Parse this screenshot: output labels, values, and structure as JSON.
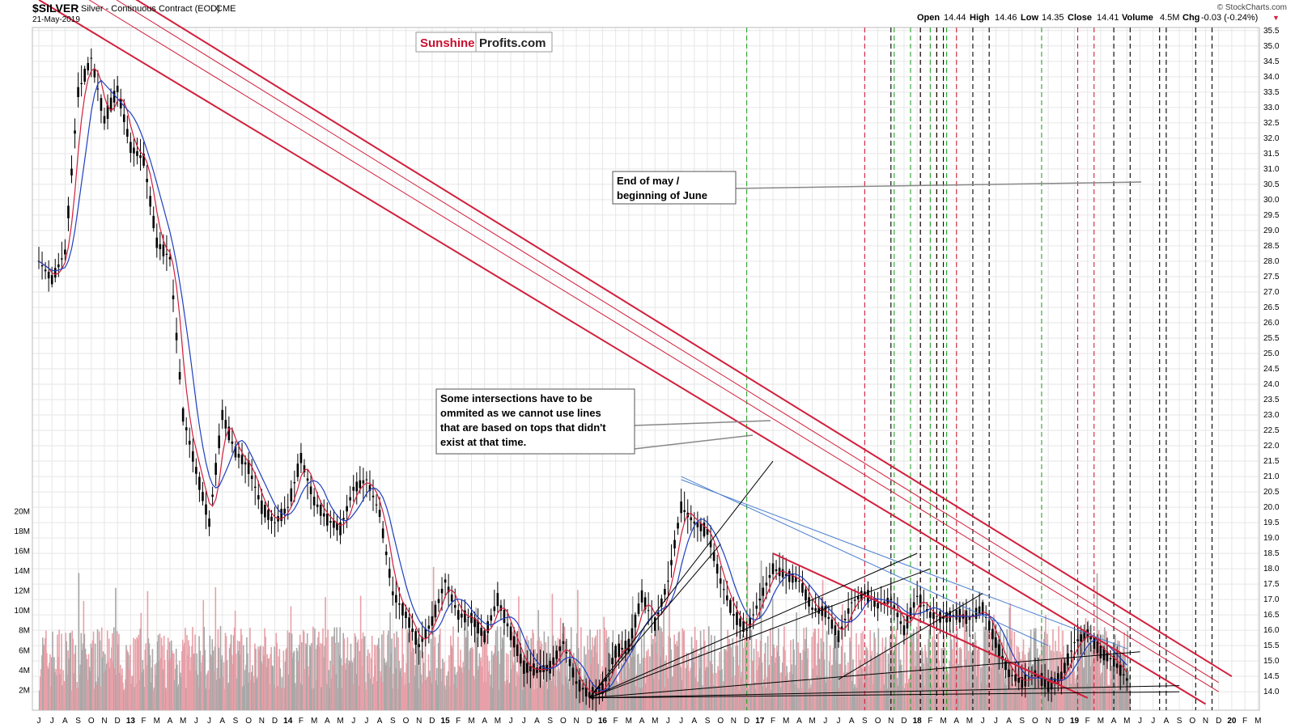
{
  "header": {
    "symbol": "$SILVER",
    "description": "Silver - Continuous Contract (EOD)",
    "exchange": "CME",
    "date": "21-May-2019",
    "credit": "© StockCharts.com",
    "quote": {
      "open_label": "Open",
      "open": "14.44",
      "high_label": "High",
      "high": "14.46",
      "low_label": "Low",
      "low": "14.35",
      "close_label": "Close",
      "close": "14.41",
      "volume_label": "Volume",
      "volume": "4.5M",
      "chg_label": "Chg",
      "chg": "-0.03 (-0.24%)",
      "chg_arrow": "▼"
    }
  },
  "logo": {
    "part1": "Sunshine",
    "part2": "Profits.com",
    "color1": "#c8102e",
    "color2": "#222222"
  },
  "annotations": [
    {
      "id": "end-of-may",
      "lines": [
        "End of may /",
        "beginning of June"
      ]
    },
    {
      "id": "intersections-note",
      "lines": [
        "Some intersections have to be",
        "ommited as we cannot use lines",
        "that are based on tops that didn't",
        "exist at that time."
      ]
    }
  ],
  "colors": {
    "red_line": "#d21f3c",
    "blue_line": "#1f3fbf",
    "price_candle": "#000000",
    "volume_red": "#e8a0a8",
    "volume_gray": "#a8a8a8",
    "green_cycle": "#2ca02c",
    "red_cycle": "#d21f3c",
    "black_cycle": "#000000",
    "grid": "#e6e6e6"
  },
  "chart_data": {
    "type": "candlestick",
    "title": "",
    "xlabel": "",
    "ylabel": "",
    "ylim": [
      13.4,
      35.6
    ],
    "volume_ylim": [
      0,
      21000000
    ],
    "grid": true,
    "y_ticks": [
      "35.5",
      "35.0",
      "34.5",
      "34.0",
      "33.5",
      "33.0",
      "32.5",
      "32.0",
      "31.5",
      "31.0",
      "30.5",
      "30.0",
      "29.5",
      "29.0",
      "28.5",
      "28.0",
      "27.5",
      "27.0",
      "26.5",
      "26.0",
      "25.5",
      "25.0",
      "24.5",
      "24.0",
      "23.5",
      "23.0",
      "22.5",
      "22.0",
      "21.5",
      "21.0",
      "20.5",
      "20.0",
      "19.5",
      "19.0",
      "18.5",
      "18.0",
      "17.5",
      "17.0",
      "16.5",
      "16.0",
      "15.5",
      "15.0",
      "14.5",
      "14.0"
    ],
    "volume_ticks": [
      "20M",
      "18M",
      "16M",
      "14M",
      "12M",
      "10M",
      "8M",
      "6M",
      "4M",
      "2M"
    ],
    "x_ticks": [
      "J",
      "J",
      "A",
      "S",
      "O",
      "N",
      "D",
      "13",
      "F",
      "M",
      "A",
      "M",
      "J",
      "J",
      "A",
      "S",
      "O",
      "N",
      "D",
      "14",
      "F",
      "M",
      "A",
      "M",
      "J",
      "J",
      "A",
      "S",
      "O",
      "N",
      "D",
      "15",
      "F",
      "M",
      "A",
      "M",
      "J",
      "J",
      "A",
      "S",
      "O",
      "N",
      "D",
      "16",
      "F",
      "M",
      "A",
      "M",
      "J",
      "J",
      "A",
      "S",
      "O",
      "N",
      "D",
      "17",
      "F",
      "M",
      "A",
      "M",
      "J",
      "J",
      "A",
      "S",
      "O",
      "N",
      "D",
      "18",
      "F",
      "M",
      "A",
      "M",
      "J",
      "J",
      "A",
      "S",
      "O",
      "N",
      "D",
      "19",
      "F",
      "M",
      "A",
      "M",
      "J",
      "J",
      "A",
      "S",
      "O",
      "N",
      "D",
      "20",
      "F",
      "M"
    ],
    "x_start": "2012-06",
    "price_path": [
      [
        "2012-06",
        28.0
      ],
      [
        "2012-07",
        27.4
      ],
      [
        "2012-08",
        28.3
      ],
      [
        "2012-09",
        33.5
      ],
      [
        "2012-10",
        34.6
      ],
      [
        "2012-11",
        32.6
      ],
      [
        "2012-12",
        33.6
      ],
      [
        "2013-01",
        31.7
      ],
      [
        "2013-02",
        31.3
      ],
      [
        "2013-03",
        28.6
      ],
      [
        "2013-04",
        28.1
      ],
      [
        "2013-05",
        23.0
      ],
      [
        "2013-06",
        21.2
      ],
      [
        "2013-07",
        19.5
      ],
      [
        "2013-08",
        23.0
      ],
      [
        "2013-09",
        21.8
      ],
      [
        "2013-10",
        21.3
      ],
      [
        "2013-11",
        20.0
      ],
      [
        "2013-12",
        19.5
      ],
      [
        "2014-01",
        20.0
      ],
      [
        "2014-02",
        21.6
      ],
      [
        "2014-03",
        20.2
      ],
      [
        "2014-04",
        19.6
      ],
      [
        "2014-05",
        19.3
      ],
      [
        "2014-06",
        20.6
      ],
      [
        "2014-07",
        20.9
      ],
      [
        "2014-08",
        19.8
      ],
      [
        "2014-09",
        17.2
      ],
      [
        "2014-10",
        16.5
      ],
      [
        "2014-11",
        15.5
      ],
      [
        "2014-12",
        16.3
      ],
      [
        "2015-01",
        17.6
      ],
      [
        "2015-02",
        16.5
      ],
      [
        "2015-03",
        16.4
      ],
      [
        "2015-04",
        15.8
      ],
      [
        "2015-05",
        17.0
      ],
      [
        "2015-06",
        15.9
      ],
      [
        "2015-07",
        14.8
      ],
      [
        "2015-08",
        14.7
      ],
      [
        "2015-09",
        14.8
      ],
      [
        "2015-10",
        15.6
      ],
      [
        "2015-11",
        14.3
      ],
      [
        "2015-12",
        13.9
      ],
      [
        "2016-01",
        14.1
      ],
      [
        "2016-02",
        15.3
      ],
      [
        "2016-03",
        15.5
      ],
      [
        "2016-04",
        17.1
      ],
      [
        "2016-05",
        16.2
      ],
      [
        "2016-06",
        17.6
      ],
      [
        "2016-07",
        20.0
      ],
      [
        "2016-08",
        19.5
      ],
      [
        "2016-09",
        19.2
      ],
      [
        "2016-10",
        17.6
      ],
      [
        "2016-11",
        16.5
      ],
      [
        "2016-12",
        16.0
      ],
      [
        "2017-01",
        17.0
      ],
      [
        "2017-02",
        18.0
      ],
      [
        "2017-03",
        17.8
      ],
      [
        "2017-04",
        17.6
      ],
      [
        "2017-05",
        16.7
      ],
      [
        "2017-06",
        16.6
      ],
      [
        "2017-07",
        15.8
      ],
      [
        "2017-08",
        16.9
      ],
      [
        "2017-09",
        17.2
      ],
      [
        "2017-10",
        16.8
      ],
      [
        "2017-11",
        17.0
      ],
      [
        "2017-12",
        16.0
      ],
      [
        "2018-01",
        17.1
      ],
      [
        "2018-02",
        16.5
      ],
      [
        "2018-03",
        16.4
      ],
      [
        "2018-04",
        16.5
      ],
      [
        "2018-05",
        16.4
      ],
      [
        "2018-06",
        16.7
      ],
      [
        "2018-07",
        15.6
      ],
      [
        "2018-08",
        14.6
      ],
      [
        "2018-09",
        14.3
      ],
      [
        "2018-10",
        14.6
      ],
      [
        "2018-11",
        14.2
      ],
      [
        "2018-12",
        14.5
      ],
      [
        "2019-01",
        15.6
      ],
      [
        "2019-02",
        15.9
      ],
      [
        "2019-03",
        15.3
      ],
      [
        "2019-04",
        15.0
      ],
      [
        "2019-05",
        14.4
      ]
    ],
    "series": [
      {
        "name": "$SILVER",
        "type": "candlestick"
      },
      {
        "name": "",
        "type": "volume"
      },
      {
        "name": "",
        "type": "moving-average",
        "color": "#d21f3c"
      },
      {
        "name": "",
        "type": "moving-average",
        "color": "#1f3fbf"
      }
    ],
    "trendlines_red": [
      {
        "from": [
          "2012-06",
          36.5
        ],
        "to": [
          "2019-11",
          13.6
        ]
      },
      {
        "from": [
          "2012-06",
          37.5
        ],
        "to": [
          "2019-12",
          14.0
        ]
      },
      {
        "from": [
          "2012-07",
          37.8
        ],
        "to": [
          "2019-12",
          14.3
        ]
      },
      {
        "from": [
          "2012-07",
          38.2
        ],
        "to": [
          "2020-01",
          14.5
        ]
      },
      {
        "from": [
          "2017-02",
          18.5
        ],
        "to": [
          "2019-02",
          13.8
        ]
      }
    ],
    "trendlines_blue": [
      {
        "from": [
          "2016-07",
          21.0
        ],
        "to": [
          "2018-11",
          15.5
        ]
      },
      {
        "from": [
          "2016-07",
          20.9
        ],
        "to": [
          "2019-05",
          15.4
        ]
      }
    ],
    "fan_lines_black": [
      {
        "from": [
          "2015-12",
          13.8
        ],
        "to": [
          "2017-02",
          21.5
        ]
      },
      {
        "from": [
          "2015-12",
          13.8
        ],
        "to": [
          "2016-10",
          18.8
        ]
      },
      {
        "from": [
          "2015-12",
          13.8
        ],
        "to": [
          "2018-01",
          18.5
        ]
      },
      {
        "from": [
          "2015-12",
          13.8
        ],
        "to": [
          "2018-02",
          18.0
        ]
      },
      {
        "from": [
          "2015-12",
          13.8
        ],
        "to": [
          "2019-06",
          15.3
        ]
      },
      {
        "from": [
          "2015-12",
          13.8
        ],
        "to": [
          "2019-09",
          14.2
        ]
      },
      {
        "from": [
          "2015-12",
          13.8
        ],
        "to": [
          "2019-09",
          14.0
        ]
      },
      {
        "from": [
          "2017-07",
          14.4
        ],
        "to": [
          "2018-06",
          17.2
        ]
      }
    ],
    "cycle_lines": {
      "green": [
        "2016-12",
        "2017-11",
        "2017-12",
        "2018-02",
        "2018-03",
        "2018-10"
      ],
      "red": [
        "2017-09",
        "2018-01",
        "2018-02",
        "2018-04",
        "2019-01",
        "2019-02"
      ],
      "black": [
        "2017-11",
        "2018-01",
        "2018-02",
        "2018-03",
        "2018-05",
        "2018-06",
        "2019-04",
        "2019-05",
        "2019-07",
        "2019-08",
        "2019-10",
        "2019-11"
      ]
    }
  }
}
